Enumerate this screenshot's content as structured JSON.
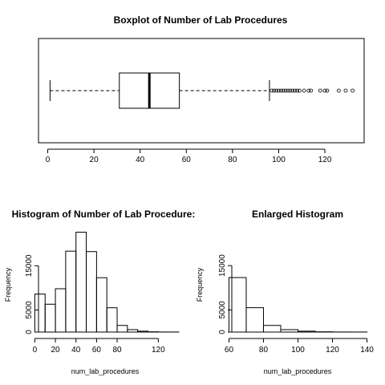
{
  "chart_data": [
    {
      "type": "boxplot",
      "title": "Boxplot of Number of Lab Procedures",
      "xlabel": "",
      "ylabel": "",
      "xlim": [
        -4,
        137
      ],
      "ticks": [
        0,
        20,
        40,
        60,
        80,
        100,
        120
      ],
      "stats": {
        "min": 1,
        "q1": 31,
        "median": 44,
        "q3": 57,
        "whisker_high": 96
      },
      "outliers": [
        97,
        98,
        99,
        100,
        101,
        102,
        103,
        104,
        105,
        106,
        107,
        108,
        109,
        111,
        113,
        114,
        118,
        120,
        121,
        126,
        129,
        132
      ],
      "frame": true
    },
    {
      "type": "histogram",
      "title": "Histogram of Number of Lab Procedure:",
      "xlabel": "num_lab_procedures",
      "ylabel": "Frequency",
      "xlim": [
        -5,
        140
      ],
      "ylim": [
        0,
        22500
      ],
      "xticks": [
        0,
        20,
        40,
        60,
        80,
        120
      ],
      "yticks": [
        0,
        5000,
        15000
      ],
      "bins": [
        {
          "start": 0,
          "end": 10,
          "count": 8600
        },
        {
          "start": 10,
          "end": 20,
          "count": 6300
        },
        {
          "start": 20,
          "end": 30,
          "count": 9800
        },
        {
          "start": 30,
          "end": 40,
          "count": 18300
        },
        {
          "start": 40,
          "end": 50,
          "count": 22600
        },
        {
          "start": 50,
          "end": 60,
          "count": 18200
        },
        {
          "start": 60,
          "end": 70,
          "count": 12300
        },
        {
          "start": 70,
          "end": 80,
          "count": 5500
        },
        {
          "start": 80,
          "end": 90,
          "count": 1500
        },
        {
          "start": 90,
          "end": 100,
          "count": 550
        },
        {
          "start": 100,
          "end": 110,
          "count": 200
        },
        {
          "start": 110,
          "end": 120,
          "count": 60
        },
        {
          "start": 120,
          "end": 130,
          "count": 20
        },
        {
          "start": 130,
          "end": 140,
          "count": 10
        }
      ]
    },
    {
      "type": "histogram",
      "title": "Enlarged Histogram",
      "xlabel": "num_lab_procedures",
      "ylabel": "Frequency",
      "xlim": [
        57,
        143
      ],
      "ylim": [
        0,
        21000
      ],
      "xticks": [
        60,
        80,
        100,
        120,
        140
      ],
      "yticks": [
        0,
        5000,
        15000
      ],
      "bins": [
        {
          "start": 60,
          "end": 70,
          "count": 12300
        },
        {
          "start": 70,
          "end": 80,
          "count": 5500
        },
        {
          "start": 80,
          "end": 90,
          "count": 1500
        },
        {
          "start": 90,
          "end": 100,
          "count": 550
        },
        {
          "start": 100,
          "end": 110,
          "count": 200
        },
        {
          "start": 110,
          "end": 120,
          "count": 60
        },
        {
          "start": 120,
          "end": 130,
          "count": 20
        },
        {
          "start": 130,
          "end": 140,
          "count": 10
        }
      ]
    }
  ]
}
